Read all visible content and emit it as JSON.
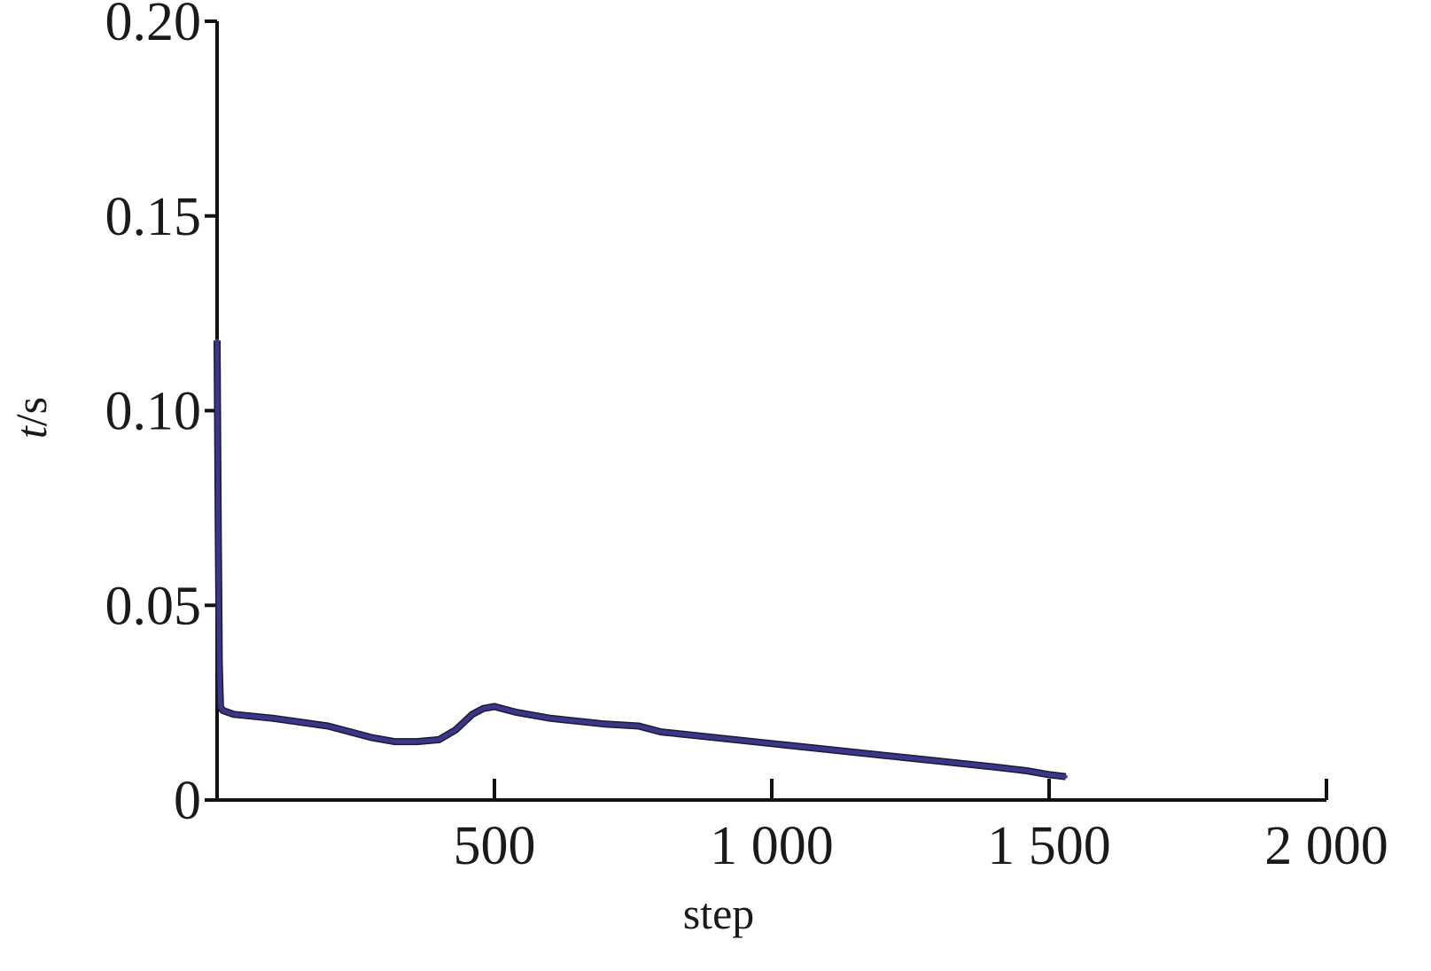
{
  "chart_data": {
    "type": "line",
    "xlabel": "step",
    "ylabel_italic": "t",
    "ylabel_unit": "/s",
    "xlim": [
      0,
      2000
    ],
    "ylim": [
      0,
      0.2
    ],
    "x_ticks": [
      500,
      1000,
      1500,
      2000
    ],
    "x_tick_labels": [
      "500",
      "1 000",
      "1 500",
      "2 000"
    ],
    "y_ticks": [
      0,
      0.05,
      0.1,
      0.15,
      0.2
    ],
    "y_tick_labels": [
      "0",
      "0.05",
      "0.10",
      "0.15",
      "0.20"
    ],
    "grid": false,
    "series": [
      {
        "color": "#3a3590",
        "x": [
          0,
          2,
          4,
          6,
          10,
          30,
          100,
          200,
          280,
          320,
          360,
          400,
          430,
          460,
          480,
          500,
          540,
          600,
          700,
          760,
          800,
          900,
          1000,
          1100,
          1200,
          1300,
          1400,
          1460,
          1500,
          1530
        ],
        "y": [
          0.118,
          0.07,
          0.035,
          0.024,
          0.023,
          0.022,
          0.021,
          0.019,
          0.016,
          0.015,
          0.015,
          0.0155,
          0.018,
          0.022,
          0.0235,
          0.024,
          0.0225,
          0.021,
          0.0195,
          0.019,
          0.0175,
          0.016,
          0.0145,
          0.013,
          0.0115,
          0.01,
          0.0085,
          0.0075,
          0.0065,
          0.006
        ]
      }
    ]
  }
}
